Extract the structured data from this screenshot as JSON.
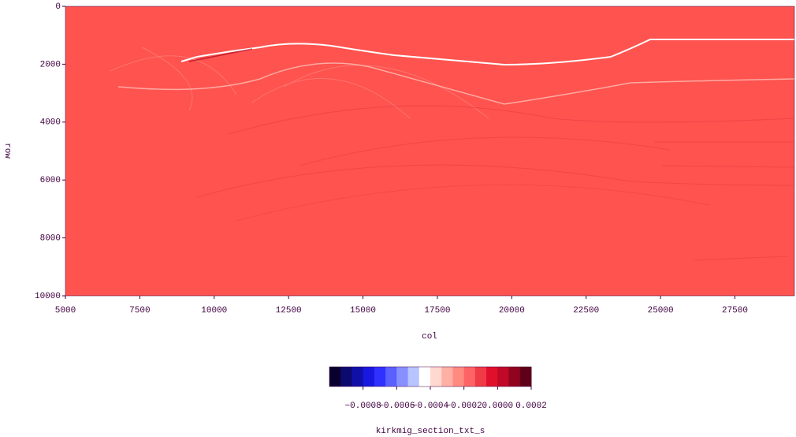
{
  "chart_data": {
    "type": "heatmap",
    "x_label": "col",
    "y_label": "row",
    "background_color": "#fe534f",
    "xlim": [
      5000,
      29500
    ],
    "xticks": [
      5000,
      7500,
      10000,
      12500,
      15000,
      17500,
      20000,
      22500,
      25000,
      27500
    ],
    "ylim": [
      10000,
      0
    ],
    "yticks": [
      0,
      2000,
      4000,
      6000,
      8000,
      10000
    ],
    "colorbar": {
      "label": "kirkmig_section_txt_s",
      "clim": [
        -0.001,
        0.0002
      ],
      "colors": [
        "#0a0030",
        "#0c0a6e",
        "#1010a8",
        "#1818e0",
        "#3030ff",
        "#5a60ff",
        "#8890ff",
        "#b8c4ff",
        "#ffffff",
        "#ffd8d0",
        "#ffb0a4",
        "#ff8a80",
        "#ff6464",
        "#f03a46",
        "#e0102c",
        "#c00828",
        "#900420",
        "#600018"
      ],
      "ticks": [
        {
          "value": -0.0008,
          "label": "−0.0008"
        },
        {
          "value": -0.0006,
          "label": "−0.0006"
        },
        {
          "value": -0.0004,
          "label": "−0.0004"
        },
        {
          "value": -0.0002,
          "label": "−0.0002"
        },
        {
          "value": 0,
          "label": "0.0000"
        },
        {
          "value": 0.0002,
          "label": "0.0002"
        }
      ]
    }
  }
}
